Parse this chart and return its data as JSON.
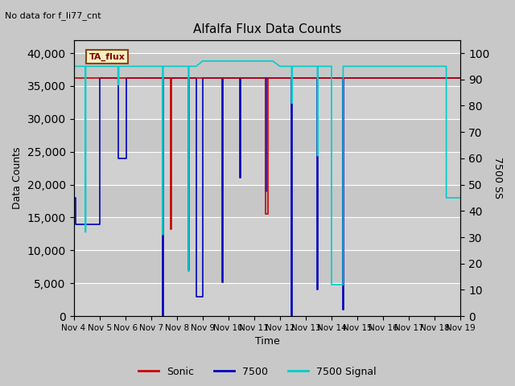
{
  "title": "Alfalfa Flux Data Counts",
  "subtitle": "No data for f_li77_cnt",
  "xlabel": "Time",
  "ylabel_left": "Data Counts",
  "ylabel_right": "7500 SS",
  "annotation": "TA_flux",
  "fig_bg_color": "#c8c8c8",
  "plot_bg_color": "#d0d0d0",
  "plot_bg_alt": "#bebebe",
  "x_labels": [
    "Nov 4",
    "Nov 5",
    "Nov 6",
    "Nov 7",
    "Nov 8",
    "Nov 9",
    "Nov 10",
    "Nov 11",
    "Nov 12",
    "Nov 13",
    "Nov 14",
    "Nov 15",
    "Nov 16",
    "Nov 17",
    "Nov 18",
    "Nov 19"
  ],
  "x_positions": [
    4,
    5,
    6,
    7,
    8,
    9,
    10,
    11,
    12,
    13,
    14,
    15,
    16,
    17,
    18,
    19
  ],
  "xlim": [
    4,
    19
  ],
  "ylim_left": [
    0,
    42000
  ],
  "ylim_right": [
    0,
    105
  ],
  "yticks_left": [
    0,
    5000,
    10000,
    15000,
    20000,
    25000,
    30000,
    35000,
    40000
  ],
  "yticks_right": [
    0,
    10,
    20,
    30,
    40,
    50,
    60,
    70,
    80,
    90,
    100
  ],
  "sonic_color": "#cc0000",
  "blue7500_color": "#0000bb",
  "cyan_color": "#00cccc",
  "legend_entries": [
    "Sonic",
    "7500",
    "7500 Signal"
  ],
  "sonic_x": [
    4.0,
    4.03,
    4.03,
    7.75,
    7.75,
    7.78,
    7.78,
    8.0,
    8.0,
    11.45,
    11.45,
    11.55,
    11.55,
    11.72,
    11.72,
    12.0,
    12.0,
    14.75,
    14.75,
    15.0,
    15.0,
    19.0
  ],
  "sonic_y": [
    17000,
    17000,
    36200,
    36200,
    13200,
    13200,
    36200,
    36200,
    36200,
    36200,
    15500,
    15500,
    36200,
    36200,
    36200,
    36200,
    36200,
    36200,
    36200,
    36200,
    36200,
    36200
  ],
  "blue_x": [
    4.0,
    4.03,
    4.03,
    4.08,
    4.08,
    5.0,
    5.0,
    5.72,
    5.72,
    6.05,
    6.05,
    7.0,
    7.0,
    7.45,
    7.45,
    7.47,
    7.47,
    7.73,
    7.73,
    8.0,
    8.0,
    8.45,
    8.45,
    8.48,
    8.48,
    8.75,
    8.75,
    9.0,
    9.0,
    9.75,
    9.75,
    9.78,
    9.78,
    10.0,
    10.0,
    10.45,
    10.45,
    10.48,
    10.48,
    10.75,
    10.75,
    11.0,
    11.0,
    11.45,
    11.45,
    11.48,
    11.48,
    11.75,
    11.75,
    12.0,
    12.0,
    12.45,
    12.45,
    12.47,
    12.47,
    12.75,
    12.75,
    13.0,
    13.0,
    13.45,
    13.45,
    13.47,
    13.47,
    14.0,
    14.0,
    14.45,
    14.45,
    14.47,
    14.47,
    14.75,
    14.75,
    15.0,
    15.0,
    19.0
  ],
  "blue_y": [
    36200,
    36200,
    18000,
    18000,
    14000,
    14000,
    36200,
    36200,
    24000,
    24000,
    36200,
    36200,
    36200,
    36200,
    0,
    0,
    36200,
    36200,
    36200,
    36200,
    36200,
    36200,
    7000,
    7000,
    36200,
    36200,
    3000,
    3000,
    36200,
    36200,
    5200,
    5200,
    36200,
    36200,
    36200,
    36200,
    21000,
    21000,
    36200,
    36200,
    36200,
    36200,
    36200,
    36200,
    19000,
    19000,
    36200,
    36200,
    36200,
    36200,
    36200,
    36200,
    0,
    0,
    36200,
    36200,
    36200,
    36200,
    36200,
    36200,
    4000,
    4000,
    36200,
    36200,
    36200,
    36200,
    1000,
    1000,
    36200,
    36200,
    36200,
    36200,
    36200,
    36200
  ],
  "cyan_ss_x": [
    4.0,
    4.03,
    4.03,
    4.45,
    4.45,
    4.47,
    4.47,
    5.0,
    5.0,
    5.72,
    5.72,
    5.75,
    5.75,
    6.0,
    6.0,
    6.45,
    6.45,
    7.0,
    7.0,
    7.45,
    7.45,
    7.47,
    7.47,
    7.72,
    7.72,
    7.75,
    7.75,
    8.0,
    8.0,
    8.45,
    8.45,
    8.47,
    8.47,
    8.72,
    8.72,
    8.75,
    8.75,
    9.0,
    9.0,
    9.45,
    9.45,
    9.72,
    9.72,
    9.75,
    9.75,
    10.0,
    10.0,
    10.45,
    10.45,
    10.72,
    10.72,
    11.0,
    11.0,
    11.45,
    11.45,
    11.72,
    11.72,
    12.0,
    12.0,
    12.45,
    12.45,
    12.48,
    12.48,
    12.72,
    12.72,
    13.0,
    13.0,
    13.45,
    13.45,
    13.47,
    13.47,
    14.0,
    14.0,
    14.45,
    14.45,
    14.48,
    14.48,
    14.72,
    14.72,
    15.0,
    15.0,
    15.45,
    15.45,
    15.72,
    15.72,
    16.0,
    16.0,
    16.45,
    16.45,
    17.0,
    17.0,
    17.45,
    17.45,
    18.0,
    18.0,
    18.45,
    18.45,
    18.72,
    18.72,
    19.0
  ],
  "cyan_ss_y": [
    95,
    95,
    95,
    95,
    32,
    32,
    95,
    95,
    95,
    95,
    88,
    88,
    95,
    95,
    95,
    95,
    95,
    95,
    95,
    95,
    31,
    31,
    95,
    95,
    95,
    95,
    95,
    95,
    95,
    95,
    17,
    17,
    95,
    95,
    95,
    95,
    95,
    97,
    97,
    97,
    97,
    97,
    97,
    97,
    97,
    97,
    97,
    97,
    97,
    97,
    97,
    97,
    97,
    97,
    97,
    97,
    97,
    95,
    95,
    95,
    81,
    81,
    95,
    95,
    95,
    95,
    95,
    95,
    61,
    61,
    95,
    95,
    12,
    12,
    95,
    95,
    95,
    95,
    95,
    95,
    95,
    95,
    95,
    95,
    95,
    95,
    95,
    95,
    95,
    95,
    95,
    95,
    95,
    95,
    95,
    95,
    45,
    45,
    45,
    45
  ]
}
